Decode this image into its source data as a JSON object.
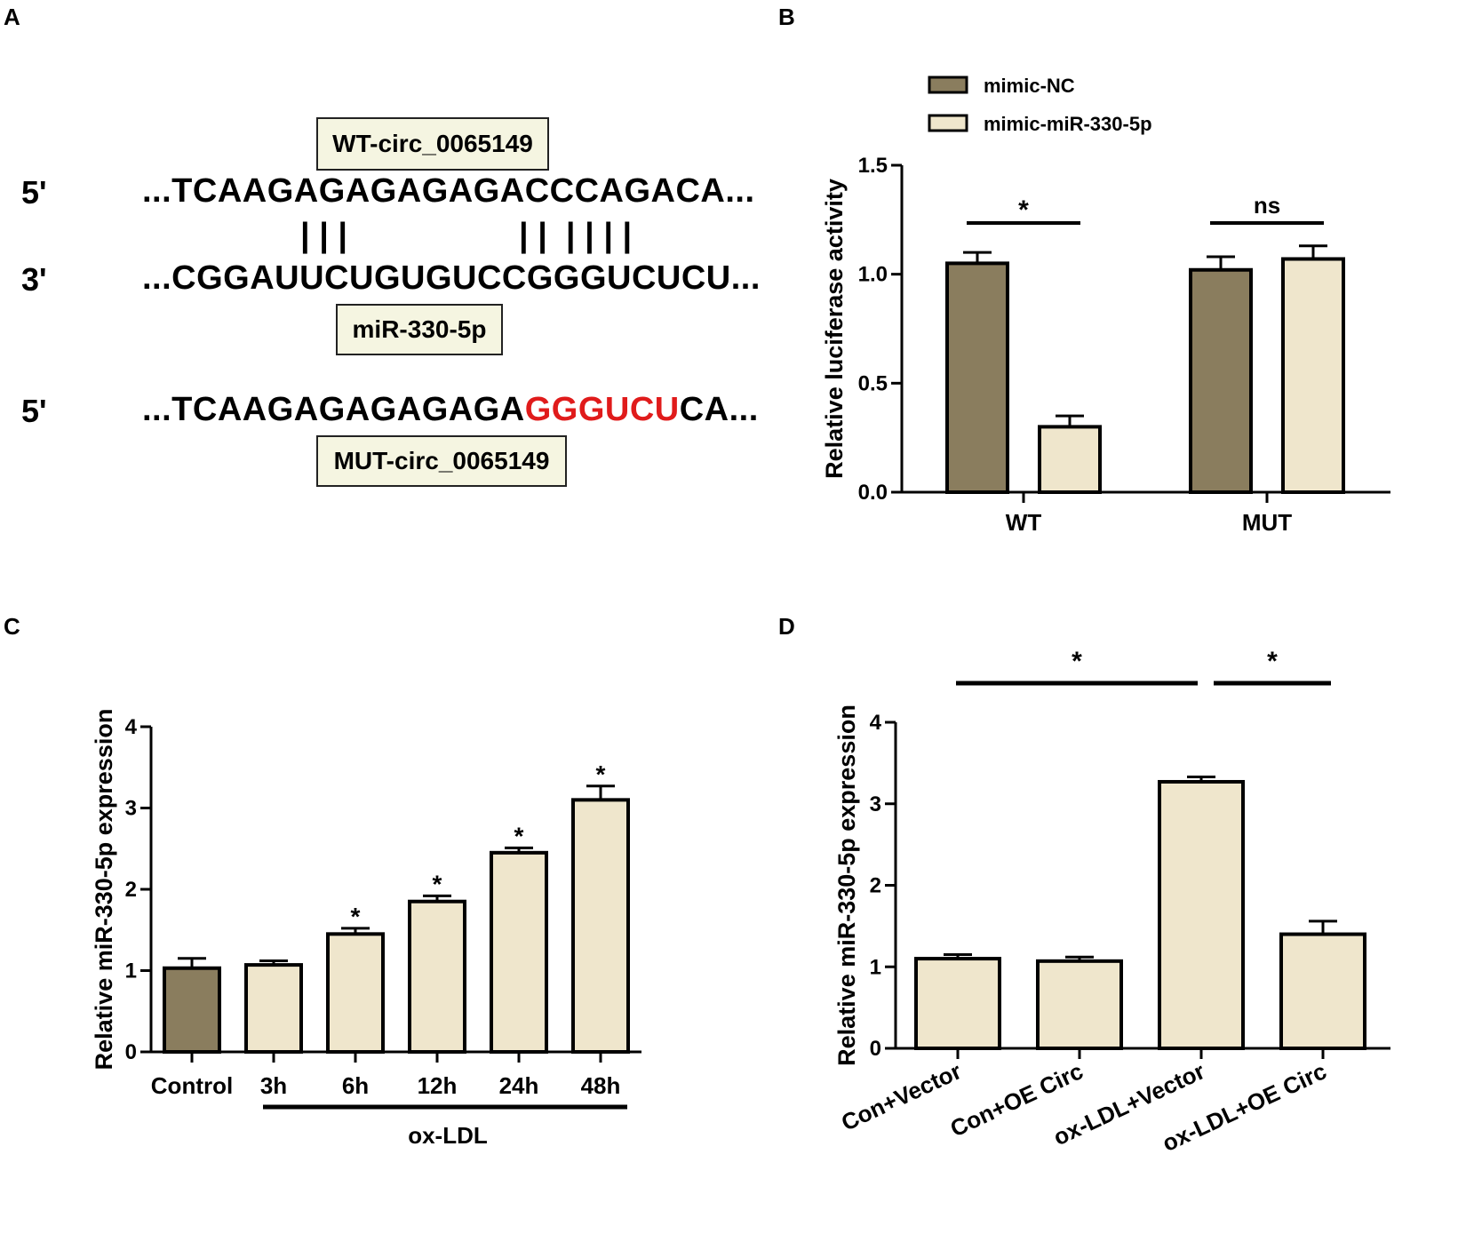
{
  "panels": {
    "a": "A",
    "b": "B",
    "c": "C",
    "d": "D"
  },
  "colors": {
    "dark_bar": "#8a7d5e",
    "light_bar": "#efe6cc",
    "mut_red": "#e01b1b",
    "box_fill": "#f5f5e1"
  },
  "panel_a": {
    "wt_label": "WT-circ_0065149",
    "mir_label": "miR-330-5p",
    "mut_label": "MUT-circ_0065149",
    "row1_prime": "5'",
    "row1_seq": "...TCAAGAGAGAGAGACCCAGACA...",
    "pairs_left": "| | |",
    "pairs_right": "| |  | | | |",
    "row2_prime": "3'",
    "row2_seq": "...CGGAUUCUGUGUCCGGGUCUCU...",
    "row3_prime": "5'",
    "row3_seq_prefix": "...TCAAGAGAGAGAGA",
    "row3_seq_mut": "GGGUCU",
    "row3_seq_suffix": "CA..."
  },
  "chart_data": [
    {
      "id": "B",
      "type": "bar",
      "categories": [
        "WT",
        "MUT"
      ],
      "series": [
        {
          "name": "mimic-NC",
          "values": [
            1.05,
            1.02
          ],
          "errors": [
            0.05,
            0.06
          ],
          "color": "#8a7d5e"
        },
        {
          "name": "mimic-miR-330-5p",
          "values": [
            0.3,
            1.07
          ],
          "errors": [
            0.05,
            0.06
          ],
          "color": "#efe6cc"
        }
      ],
      "ylabel": "Relative luciferase activity",
      "xlabel": "",
      "ylim": [
        0,
        1.5
      ],
      "yticks": [
        0.0,
        0.5,
        1.0,
        1.5
      ],
      "ytick_labels": [
        "0.0",
        "0.5",
        "1.0",
        "1.5"
      ],
      "legend_position": "top",
      "significance": [
        {
          "category": "WT",
          "label": "*"
        },
        {
          "category": "MUT",
          "label": "ns"
        }
      ]
    },
    {
      "id": "C",
      "type": "bar",
      "categories": [
        "Control",
        "3h",
        "6h",
        "12h",
        "24h",
        "48h"
      ],
      "values": [
        1.03,
        1.07,
        1.45,
        1.85,
        2.45,
        3.1
      ],
      "errors": [
        0.12,
        0.05,
        0.07,
        0.07,
        0.06,
        0.17
      ],
      "bar_colors": [
        "#8a7d5e",
        "#efe6cc",
        "#efe6cc",
        "#efe6cc",
        "#efe6cc",
        "#efe6cc"
      ],
      "stars": [
        "",
        "",
        "*",
        "*",
        "*",
        "*"
      ],
      "ylabel": "Relative miR-330-5p expression",
      "ylim": [
        0,
        4
      ],
      "yticks": [
        0,
        1,
        2,
        3,
        4
      ],
      "ytick_labels": [
        "0",
        "1",
        "2",
        "3",
        "4"
      ],
      "group_label": "ox-LDL"
    },
    {
      "id": "D",
      "type": "bar",
      "categories": [
        "Con+Vector",
        "Con+OE Circ",
        "ox-LDL+Vector",
        "ox-LDL+OE Circ"
      ],
      "values": [
        1.1,
        1.07,
        3.27,
        1.4
      ],
      "errors": [
        0.05,
        0.05,
        0.06,
        0.16
      ],
      "bar_color": "#efe6cc",
      "ylabel": "Relative miR-330-5p expression",
      "ylim": [
        0,
        4
      ],
      "yticks": [
        0,
        1,
        2,
        3,
        4
      ],
      "ytick_labels": [
        "0",
        "1",
        "2",
        "3",
        "4"
      ],
      "significance": [
        {
          "from": 0,
          "to": 2,
          "label": "*"
        },
        {
          "from": 2,
          "to": 3,
          "label": "*"
        }
      ]
    }
  ]
}
